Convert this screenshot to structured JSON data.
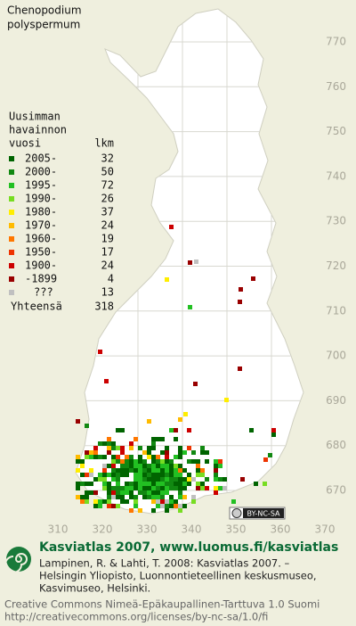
{
  "title": [
    "Chenopodium",
    "polyspermum"
  ],
  "legend": {
    "header": [
      "Uusimman",
      "havainnon",
      "vuosi"
    ],
    "count_header": "lkm",
    "rows": [
      {
        "period": "2005-",
        "count": 32,
        "color": "#006400"
      },
      {
        "period": "2000-",
        "count": 50,
        "color": "#118811"
      },
      {
        "period": "1995-",
        "count": 72,
        "color": "#22c022"
      },
      {
        "period": "1990-",
        "count": 26,
        "color": "#77dd22"
      },
      {
        "period": "1980-",
        "count": 37,
        "color": "#ffee00"
      },
      {
        "period": "1970-",
        "count": 24,
        "color": "#ffbb00"
      },
      {
        "period": "1960-",
        "count": 19,
        "color": "#ff7700"
      },
      {
        "period": "1950-",
        "count": 17,
        "color": "#ee3300"
      },
      {
        "period": "1900-",
        "count": 24,
        "color": "#cc0000"
      },
      {
        "period": "-1899",
        "count": 4,
        "color": "#990000"
      },
      {
        "period": "???",
        "count": 13,
        "color": "#c0c0c0"
      }
    ],
    "total": {
      "label": "Yhteensä",
      "count": 318
    }
  },
  "axes": {
    "y_labels": [
      770,
      760,
      750,
      740,
      730,
      720,
      710,
      700,
      690,
      680,
      670
    ],
    "x_labels": [
      310,
      320,
      330,
      340,
      350,
      360,
      370
    ]
  },
  "badge": "BY-NC-SA",
  "footer": {
    "heading": "Kasviatlas 2007, www.luomus.fi/kasviatlas",
    "citation": [
      "Lampinen, R. & Lahti, T. 2008: Kasviatlas 2007. –",
      "Helsingin Yliopisto, Luonnontieteellinen keskusmuseo,",
      "Kasvimuseo, Helsinki."
    ],
    "license": [
      "Creative Commons Nimeä-Epäkaupallinen-Tarttuva 1.0 Suomi",
      "http://creativecommons.org/licenses/by-nc-sa/1.0/fi"
    ]
  }
}
